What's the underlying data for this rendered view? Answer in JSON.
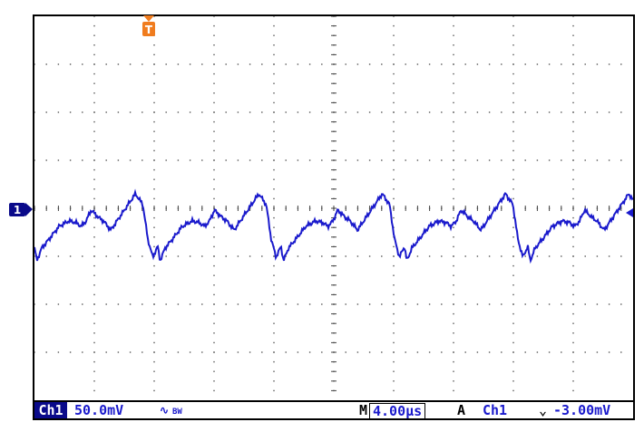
{
  "screen": {
    "trigger_marker_label": "T",
    "channel_marker_label": "1",
    "trace_color": "#1a1acc",
    "trigger_color": "#f07c1e"
  },
  "status_bar": {
    "channel_label": "Ch1",
    "volts_per_div": "50.0mV",
    "coupling_icon": "ac-coupling-icon",
    "bw_label": "BW",
    "m_label": "M",
    "time_per_div": "4.00µs",
    "a_label": "A",
    "trigger_source": "Ch1",
    "trigger_slope_icon": "falling-edge-icon",
    "trigger_level": "-3.00mV"
  }
}
